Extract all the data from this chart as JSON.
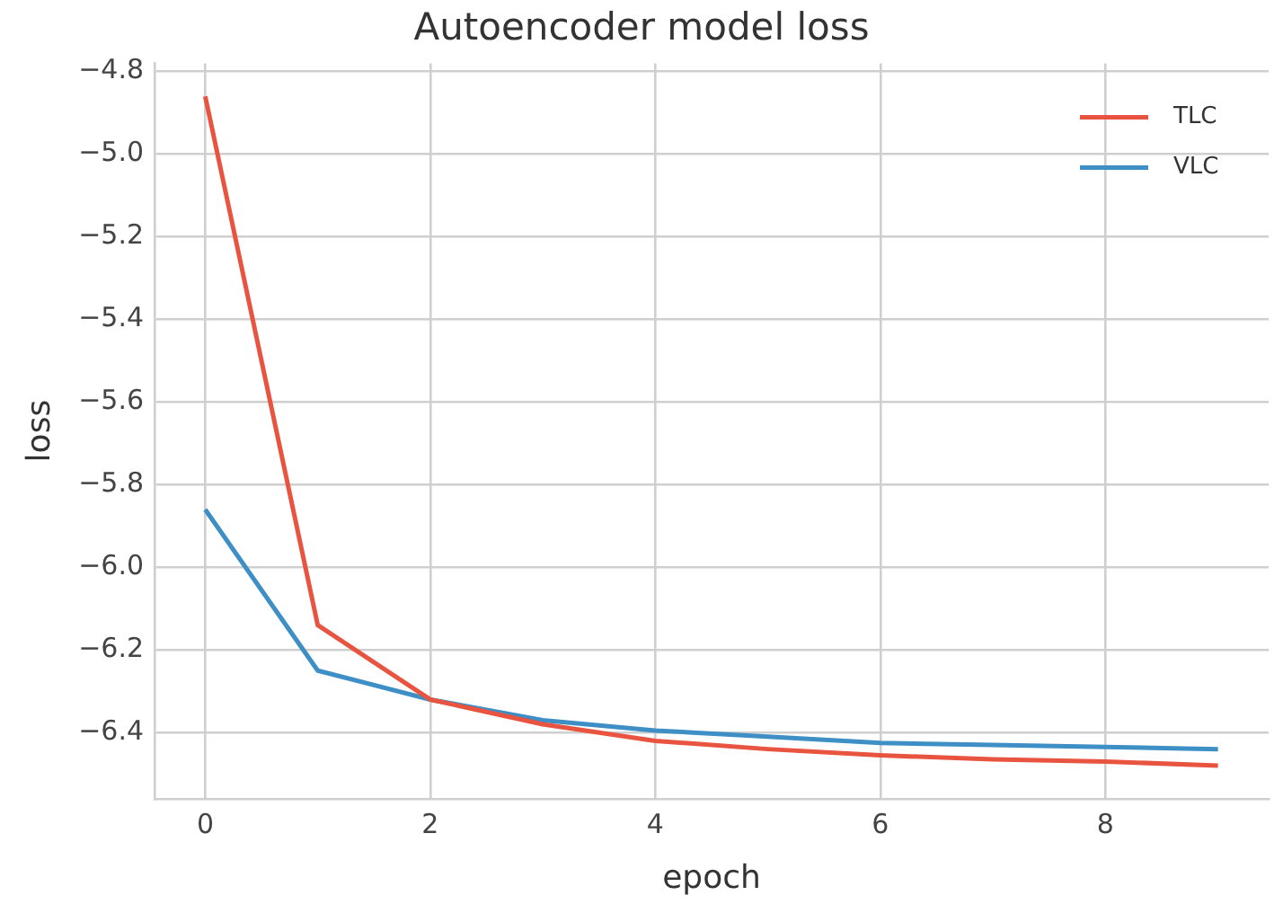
{
  "chart_data": {
    "type": "line",
    "title": "Autoencoder model loss",
    "xlabel": "epoch",
    "ylabel": "loss",
    "x": [
      0,
      1,
      2,
      3,
      4,
      5,
      6,
      7,
      8,
      9
    ],
    "series": [
      {
        "name": "TLC",
        "color": "#e8543f",
        "values": [
          -4.86,
          -6.14,
          -6.32,
          -6.38,
          -6.42,
          -6.44,
          -6.455,
          -6.465,
          -6.47,
          -6.48
        ]
      },
      {
        "name": "VLC",
        "color": "#3d8fc6",
        "values": [
          -5.86,
          -6.25,
          -6.32,
          -6.37,
          -6.395,
          -6.41,
          -6.425,
          -6.43,
          -6.435,
          -6.44
        ]
      }
    ],
    "xlim": [
      -0.45,
      9.45
    ],
    "xticks": [
      0,
      2,
      4,
      6,
      8
    ],
    "ylim": [
      -6.56,
      -4.78
    ],
    "yticks": [
      {
        "value": -6.4,
        "label": "−6.4"
      },
      {
        "value": -6.2,
        "label": "−6.2"
      },
      {
        "value": -6.0,
        "label": "−6.0"
      },
      {
        "value": -5.8,
        "label": "−5.8"
      },
      {
        "value": -5.6,
        "label": "−5.6"
      },
      {
        "value": -5.4,
        "label": "−5.4"
      },
      {
        "value": -5.2,
        "label": "−5.2"
      },
      {
        "value": -5.0,
        "label": "−5.0"
      },
      {
        "value": -4.8,
        "label": "−4.8"
      }
    ],
    "grid": true,
    "legend": "top right",
    "marker": "none",
    "line_style": "solid"
  }
}
